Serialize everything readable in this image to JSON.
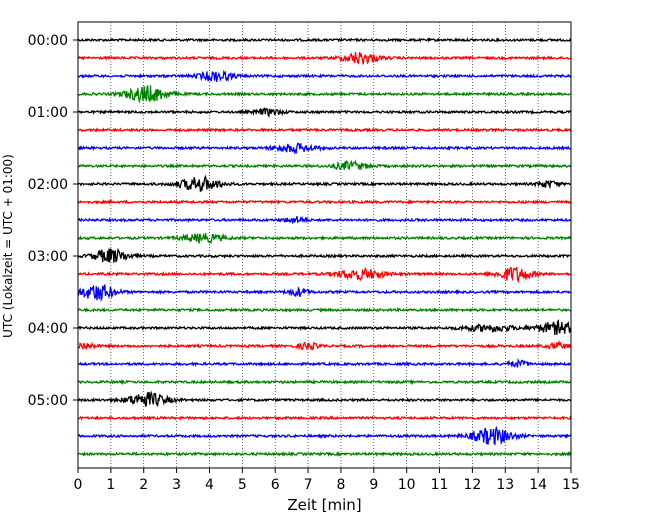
{
  "chart_data": {
    "type": "line",
    "title": "",
    "xlabel": "Zeit  [min]",
    "ylabel": "UTC (Lokalzeit = UTC + 01:00)",
    "xlim": [
      0,
      15
    ],
    "x_ticks": [
      "0",
      "1",
      "2",
      "3",
      "4",
      "5",
      "6",
      "7",
      "8",
      "9",
      "10",
      "11",
      "12",
      "13",
      "14",
      "15"
    ],
    "y_tick_labels": [
      "00:00",
      "01:00",
      "02:00",
      "03:00",
      "04:00",
      "05:00"
    ],
    "y_tick_hours": [
      0,
      1,
      2,
      3,
      4,
      5
    ],
    "trace_interval_min": 15,
    "trace_count": 24,
    "color_cycle": [
      "#000000",
      "#ff0000",
      "#0000ff",
      "#008000"
    ],
    "vertical_grid": true,
    "grid_style": "dotted",
    "bursts": [
      {
        "trace": 1,
        "t": 8.6,
        "amp": 6,
        "width": 0.5
      },
      {
        "trace": 2,
        "t": 4.2,
        "amp": 5,
        "width": 0.5
      },
      {
        "trace": 3,
        "t": 2.1,
        "amp": 8,
        "width": 0.6
      },
      {
        "trace": 4,
        "t": 5.8,
        "amp": 3,
        "width": 0.4
      },
      {
        "trace": 6,
        "t": 6.6,
        "amp": 4,
        "width": 0.6
      },
      {
        "trace": 7,
        "t": 8.3,
        "amp": 4,
        "width": 0.5
      },
      {
        "trace": 8,
        "t": 3.7,
        "amp": 7,
        "width": 0.6
      },
      {
        "trace": 8,
        "t": 14.3,
        "amp": 3,
        "width": 0.3
      },
      {
        "trace": 10,
        "t": 6.6,
        "amp": 3,
        "width": 0.3
      },
      {
        "trace": 11,
        "t": 3.8,
        "amp": 4,
        "width": 0.6
      },
      {
        "trace": 12,
        "t": 1.0,
        "amp": 7,
        "width": 0.5
      },
      {
        "trace": 13,
        "t": 8.6,
        "amp": 5,
        "width": 0.7
      },
      {
        "trace": 13,
        "t": 13.3,
        "amp": 7,
        "width": 0.5
      },
      {
        "trace": 14,
        "t": 0.6,
        "amp": 8,
        "width": 0.5
      },
      {
        "trace": 14,
        "t": 6.7,
        "amp": 4,
        "width": 0.3
      },
      {
        "trace": 16,
        "t": 14.6,
        "amp": 6,
        "width": 0.6
      },
      {
        "trace": 16,
        "t": 12.5,
        "amp": 3,
        "width": 0.8
      },
      {
        "trace": 17,
        "t": 7.0,
        "amp": 3,
        "width": 0.3
      },
      {
        "trace": 17,
        "t": 14.6,
        "amp": 3,
        "width": 0.3
      },
      {
        "trace": 17,
        "t": 0.2,
        "amp": 3,
        "width": 0.3
      },
      {
        "trace": 18,
        "t": 13.4,
        "amp": 3,
        "width": 0.3
      },
      {
        "trace": 20,
        "t": 2.1,
        "amp": 7,
        "width": 0.6
      },
      {
        "trace": 22,
        "t": 12.6,
        "amp": 8,
        "width": 0.6
      }
    ]
  }
}
